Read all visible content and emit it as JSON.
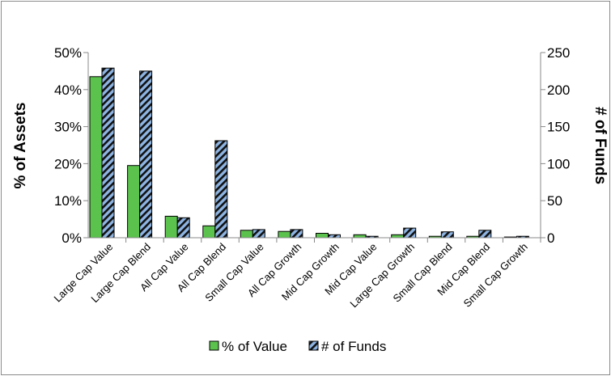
{
  "chart_data": {
    "type": "bar",
    "categories": [
      "Large Cap Value",
      "Large Cap Blend",
      "All Cap Value",
      "All Cap Blend",
      "Small Cap Value",
      "All Cap Growth",
      "Mid Cap Growth",
      "Mid Cap Value",
      "Large Cap Growth",
      "Small Cap Blend",
      "Mid Cap Blend",
      "Small Cap Growth"
    ],
    "series": [
      {
        "name": "% of Value",
        "axis": "left",
        "color": "#5cc24e",
        "values": [
          43.5,
          19.5,
          5.8,
          3.2,
          2.0,
          1.7,
          1.2,
          0.8,
          0.8,
          0.4,
          0.4,
          0.2
        ]
      },
      {
        "name": "# of Funds",
        "axis": "right",
        "color": "#8db4e2",
        "pattern": "black-diagonal-stripes",
        "values": [
          229,
          225,
          27,
          131,
          11,
          11,
          4,
          2,
          13,
          8,
          10,
          2
        ]
      }
    ],
    "ylabel": "% of Assets",
    "y2label": "# of Funds",
    "ylim": [
      0,
      50
    ],
    "y2lim": [
      0,
      250
    ],
    "yticks": [
      "0%",
      "10%",
      "20%",
      "30%",
      "40%",
      "50%"
    ],
    "y2ticks": [
      "0",
      "50",
      "100",
      "150",
      "200",
      "250"
    ],
    "grid": false,
    "legend_position": "bottom"
  }
}
